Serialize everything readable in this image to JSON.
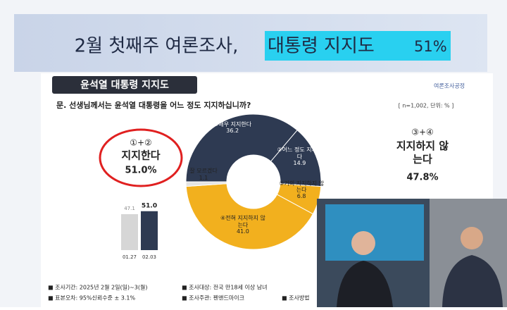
{
  "header": {
    "title": "2월 첫째주 여론조사,",
    "highlight": "대통령 지지도",
    "highlight_value": "51%"
  },
  "slide": {
    "section_title": "윤석열 대통령 지지도",
    "logo": "여론조사공정",
    "question": "문. 선생님께서는 윤석열 대통령을 어느 정도 지지하십니까?",
    "sample_note": "[ n=1,002, 단위: % ]",
    "support": {
      "code": "①+②",
      "label": "지지한다",
      "value": "51.0%"
    },
    "oppose": {
      "code": "③+④",
      "label": "지지하지 않는다",
      "value": "47.8%"
    },
    "footer": [
      "■ 조사기간: 2025년 2월 2일(일)~3(월)",
      "■ 조사대상: 전국 만18세 이상 남녀",
      "■ 표본오차: 95%신뢰수준 ± 3.1%",
      "■ 조사주관: 펜앤드마이크",
      "■ 조사방법"
    ]
  },
  "chart_data": [
    {
      "type": "donut",
      "categories": [
        "①매우 지지한다",
        "②어느 정도 지지한다",
        "③거의 지지하지 않는다",
        "④전혀 지지하지 않는다",
        "잘 모르겠다"
      ],
      "values": [
        36.2,
        14.9,
        6.8,
        41.0,
        1.1
      ],
      "value_labels": [
        "36.2",
        "14.9",
        "6.8",
        "41.0",
        "1.1"
      ],
      "colors": [
        "#2e3a52",
        "#2e3a52",
        "#f2b01e",
        "#f2b01e",
        "#e4e4e4"
      ]
    },
    {
      "type": "bar",
      "categories": [
        "01.27",
        "02.03"
      ],
      "values": [
        47.1,
        51.0
      ],
      "value_labels": [
        "47.1",
        "51.0"
      ],
      "colors": [
        "#d6d6d6",
        "#2e3a52"
      ],
      "ylim": [
        0,
        60
      ]
    }
  ]
}
